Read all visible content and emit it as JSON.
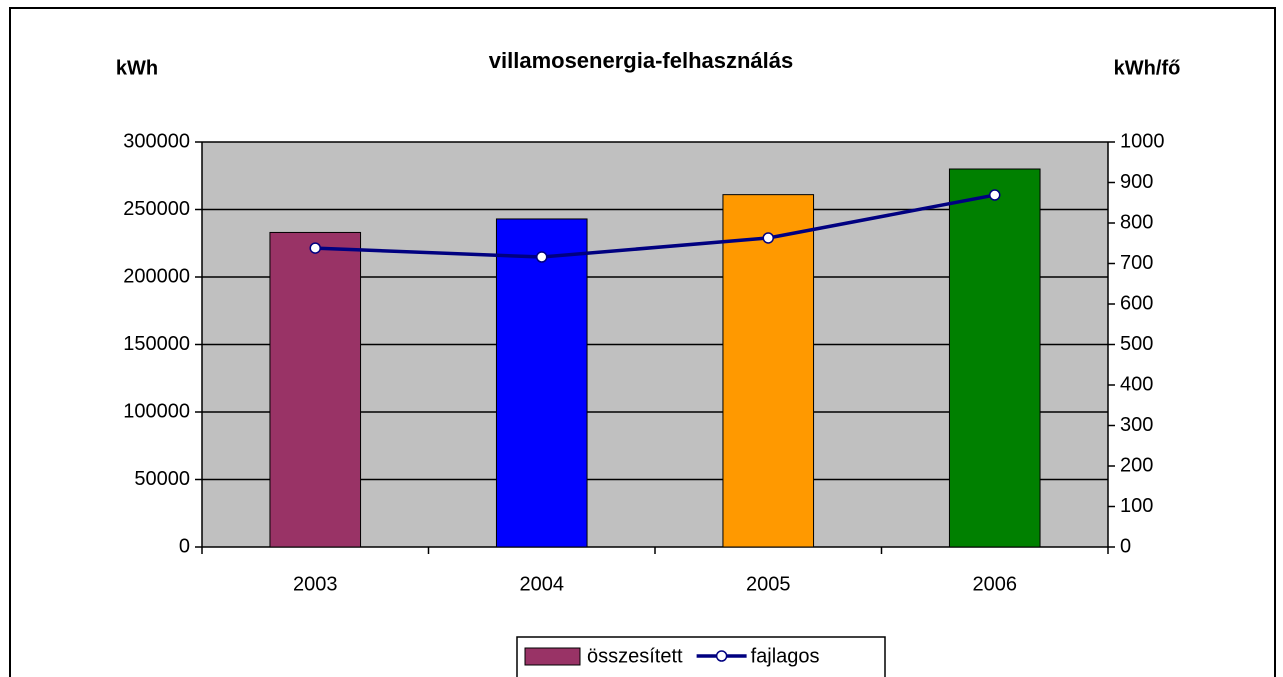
{
  "chart_data": {
    "type": "bar-line",
    "title": "villamosenergia-felhasználás",
    "y_label": "kWh",
    "y2_label": "kWh/fő",
    "categories": [
      "2003",
      "2004",
      "2005",
      "2006"
    ],
    "series": [
      {
        "name": "összesített",
        "type": "bar",
        "color": "#993366",
        "colors": [
          "#993366",
          "#0000ff",
          "#ff9900",
          "#008000"
        ],
        "values": [
          233000,
          243000,
          261000,
          280000
        ]
      },
      {
        "name": "fajlagos",
        "type": "line",
        "axis": "y2",
        "color": "#000080",
        "values": [
          738,
          716,
          763,
          869
        ]
      }
    ],
    "ylim": [
      0,
      300000
    ],
    "yticks": [
      0,
      50000,
      100000,
      150000,
      200000,
      250000,
      300000
    ],
    "y2lim": [
      0,
      1000
    ],
    "y2ticks": [
      0,
      100,
      200,
      300,
      400,
      500,
      600,
      700,
      800,
      900,
      1000
    ],
    "grid": true,
    "legend": "bottom"
  }
}
